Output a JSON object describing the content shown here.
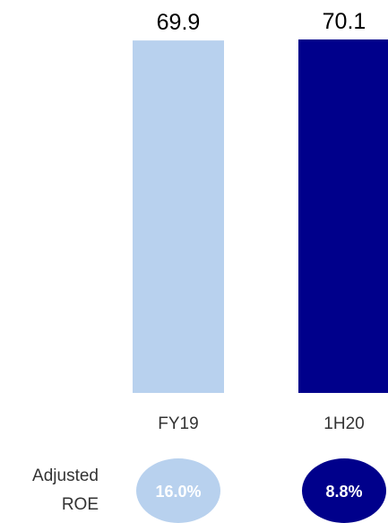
{
  "chart_data": {
    "type": "bar",
    "categories": [
      "FY19",
      "1H20"
    ],
    "values": [
      69.9,
      70.1
    ],
    "value_labels": [
      "69.9",
      "70.1"
    ],
    "ylim": [
      0,
      70.1
    ],
    "bar_colors": [
      "#b8d1ee",
      "#00008b"
    ],
    "grid": false,
    "title": "",
    "xlabel": "",
    "ylabel": ""
  },
  "roe": {
    "label_line1": "Adjusted",
    "label_line2": "ROE",
    "values": [
      "16.0%",
      "8.8%"
    ],
    "colors": [
      "#b8d1ee",
      "#00008b"
    ]
  }
}
